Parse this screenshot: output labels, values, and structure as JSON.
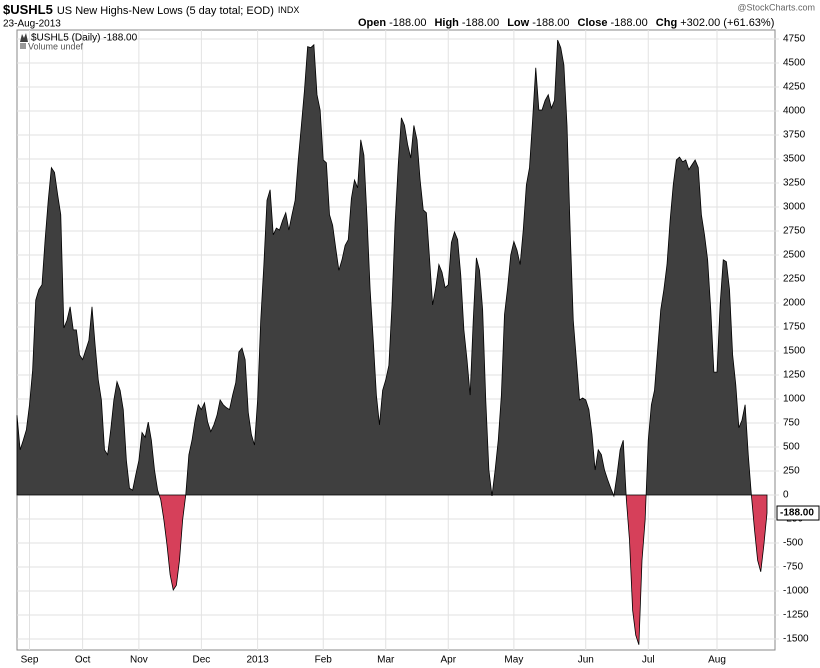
{
  "chart_data": {
    "type": "area",
    "title": "$USHL5",
    "subtitle": "US New Highs-New Lows (5 day total; EOD)",
    "exchange": "INDX",
    "date": "23-Aug-2013",
    "credit": "@StockCharts.com",
    "quote": [
      {
        "label": "Open",
        "value": "-188.00"
      },
      {
        "label": "High",
        "value": "-188.00"
      },
      {
        "label": "Low",
        "value": "-188.00"
      },
      {
        "label": "Close",
        "value": "-188.00"
      },
      {
        "label": "Chg",
        "value": "+302.00 (+61.63%)"
      }
    ],
    "volume_note": "Volume undef",
    "categories": [
      null,
      null,
      null,
      null,
      "Sep",
      null,
      null,
      null,
      null,
      null,
      null,
      null,
      null,
      null,
      null,
      null,
      null,
      null,
      null,
      null,
      null,
      "Oct",
      null,
      null,
      null,
      null,
      null,
      null,
      null,
      null,
      null,
      null,
      null,
      null,
      null,
      null,
      null,
      null,
      null,
      "Nov",
      null,
      null,
      null,
      null,
      null,
      null,
      null,
      null,
      null,
      null,
      null,
      null,
      null,
      null,
      null,
      null,
      null,
      null,
      null,
      "Dec",
      null,
      null,
      null,
      null,
      null,
      null,
      null,
      null,
      null,
      null,
      null,
      null,
      null,
      null,
      null,
      null,
      null,
      "2013",
      null,
      null,
      null,
      null,
      null,
      null,
      null,
      null,
      null,
      null,
      null,
      null,
      null,
      null,
      null,
      null,
      null,
      null,
      null,
      null,
      "Feb",
      null,
      null,
      null,
      null,
      null,
      null,
      null,
      null,
      null,
      null,
      null,
      null,
      null,
      null,
      null,
      null,
      null,
      null,
      null,
      "Mar",
      null,
      null,
      null,
      null,
      null,
      null,
      null,
      null,
      null,
      null,
      null,
      null,
      null,
      null,
      null,
      null,
      null,
      null,
      null,
      "Apr",
      null,
      null,
      null,
      null,
      null,
      null,
      null,
      null,
      null,
      null,
      null,
      null,
      null,
      null,
      null,
      null,
      null,
      null,
      null,
      null,
      "May",
      null,
      null,
      null,
      null,
      null,
      null,
      null,
      null,
      null,
      null,
      null,
      null,
      null,
      null,
      null,
      null,
      null,
      null,
      null,
      null,
      null,
      null,
      "Jun",
      null,
      null,
      null,
      null,
      null,
      null,
      null,
      null,
      null,
      null,
      null,
      null,
      null,
      null,
      null,
      null,
      null,
      null,
      null,
      "Jul",
      null,
      null,
      null,
      null,
      null,
      null,
      null,
      null,
      null,
      null,
      null,
      null,
      null,
      null,
      null,
      null,
      null,
      null,
      null,
      null,
      null,
      "Aug",
      null,
      null,
      null,
      null,
      null,
      null,
      null,
      null,
      null,
      null,
      null,
      null,
      null,
      null,
      null,
      null
    ],
    "series": [
      {
        "name": "$USHL5 (Daily) -188.00",
        "color": "#3f3f3f",
        "negative_color": "#d6405a",
        "last_label": "-188.00",
        "values": [
          830,
          470,
          570,
          680,
          940,
          1300,
          2030,
          2140,
          2190,
          2660,
          3070,
          3410,
          3360,
          3130,
          2920,
          1740,
          1820,
          1960,
          1720,
          1720,
          1460,
          1410,
          1510,
          1610,
          1960,
          1560,
          1200,
          990,
          470,
          420,
          680,
          990,
          1180,
          1090,
          890,
          360,
          70,
          50,
          210,
          360,
          650,
          600,
          760,
          570,
          260,
          50,
          -50,
          -260,
          -520,
          -830,
          -990,
          -940,
          -680,
          -260,
          0,
          420,
          570,
          780,
          940,
          890,
          960,
          760,
          660,
          730,
          830,
          990,
          940,
          910,
          890,
          1040,
          1170,
          1490,
          1530,
          1410,
          860,
          630,
          520,
          990,
          1820,
          2400,
          3070,
          3180,
          2710,
          2780,
          2760,
          2860,
          2940,
          2760,
          2920,
          3070,
          3490,
          3850,
          4220,
          4670,
          4660,
          4690,
          4170,
          4010,
          3490,
          3460,
          2920,
          2810,
          2570,
          2340,
          2450,
          2600,
          2660,
          3090,
          3280,
          3200,
          3700,
          3540,
          2890,
          2140,
          1610,
          1040,
          730,
          1090,
          1200,
          1350,
          1980,
          2840,
          3440,
          3930,
          3850,
          3650,
          3510,
          3850,
          3700,
          3280,
          2970,
          2940,
          2470,
          1980,
          2160,
          2400,
          2320,
          2160,
          2190,
          2630,
          2740,
          2660,
          2290,
          1720,
          1410,
          1040,
          1820,
          2470,
          2340,
          1930,
          990,
          260,
          -10,
          260,
          570,
          1040,
          1880,
          2160,
          2500,
          2640,
          2550,
          2400,
          2760,
          3230,
          3410,
          3910,
          4450,
          4010,
          4010,
          4110,
          4170,
          4030,
          4110,
          4740,
          4660,
          4480,
          3850,
          2760,
          1820,
          1410,
          990,
          1010,
          990,
          890,
          630,
          260,
          470,
          420,
          260,
          160,
          70,
          -10,
          210,
          470,
          570,
          -50,
          -470,
          -1200,
          -1460,
          -1560,
          -680,
          -260,
          570,
          940,
          1090,
          1510,
          1930,
          2140,
          2400,
          2860,
          3230,
          3490,
          3520,
          3470,
          3490,
          3390,
          3440,
          3490,
          3410,
          2920,
          2710,
          2450,
          1930,
          1280,
          1280,
          1980,
          2450,
          2430,
          2140,
          1460,
          1150,
          700,
          780,
          940,
          420,
          0,
          -360,
          -680,
          -800,
          -520,
          -188
        ]
      }
    ],
    "ylim": [
      -1615,
      4844
    ],
    "yticks": [
      -1500,
      -1250,
      -1000,
      -750,
      -500,
      -250,
      0,
      250,
      500,
      750,
      1000,
      1250,
      1500,
      1750,
      2000,
      2250,
      2500,
      2750,
      3000,
      3250,
      3500,
      3750,
      4000,
      4250,
      4500,
      4750
    ],
    "grid": true
  }
}
